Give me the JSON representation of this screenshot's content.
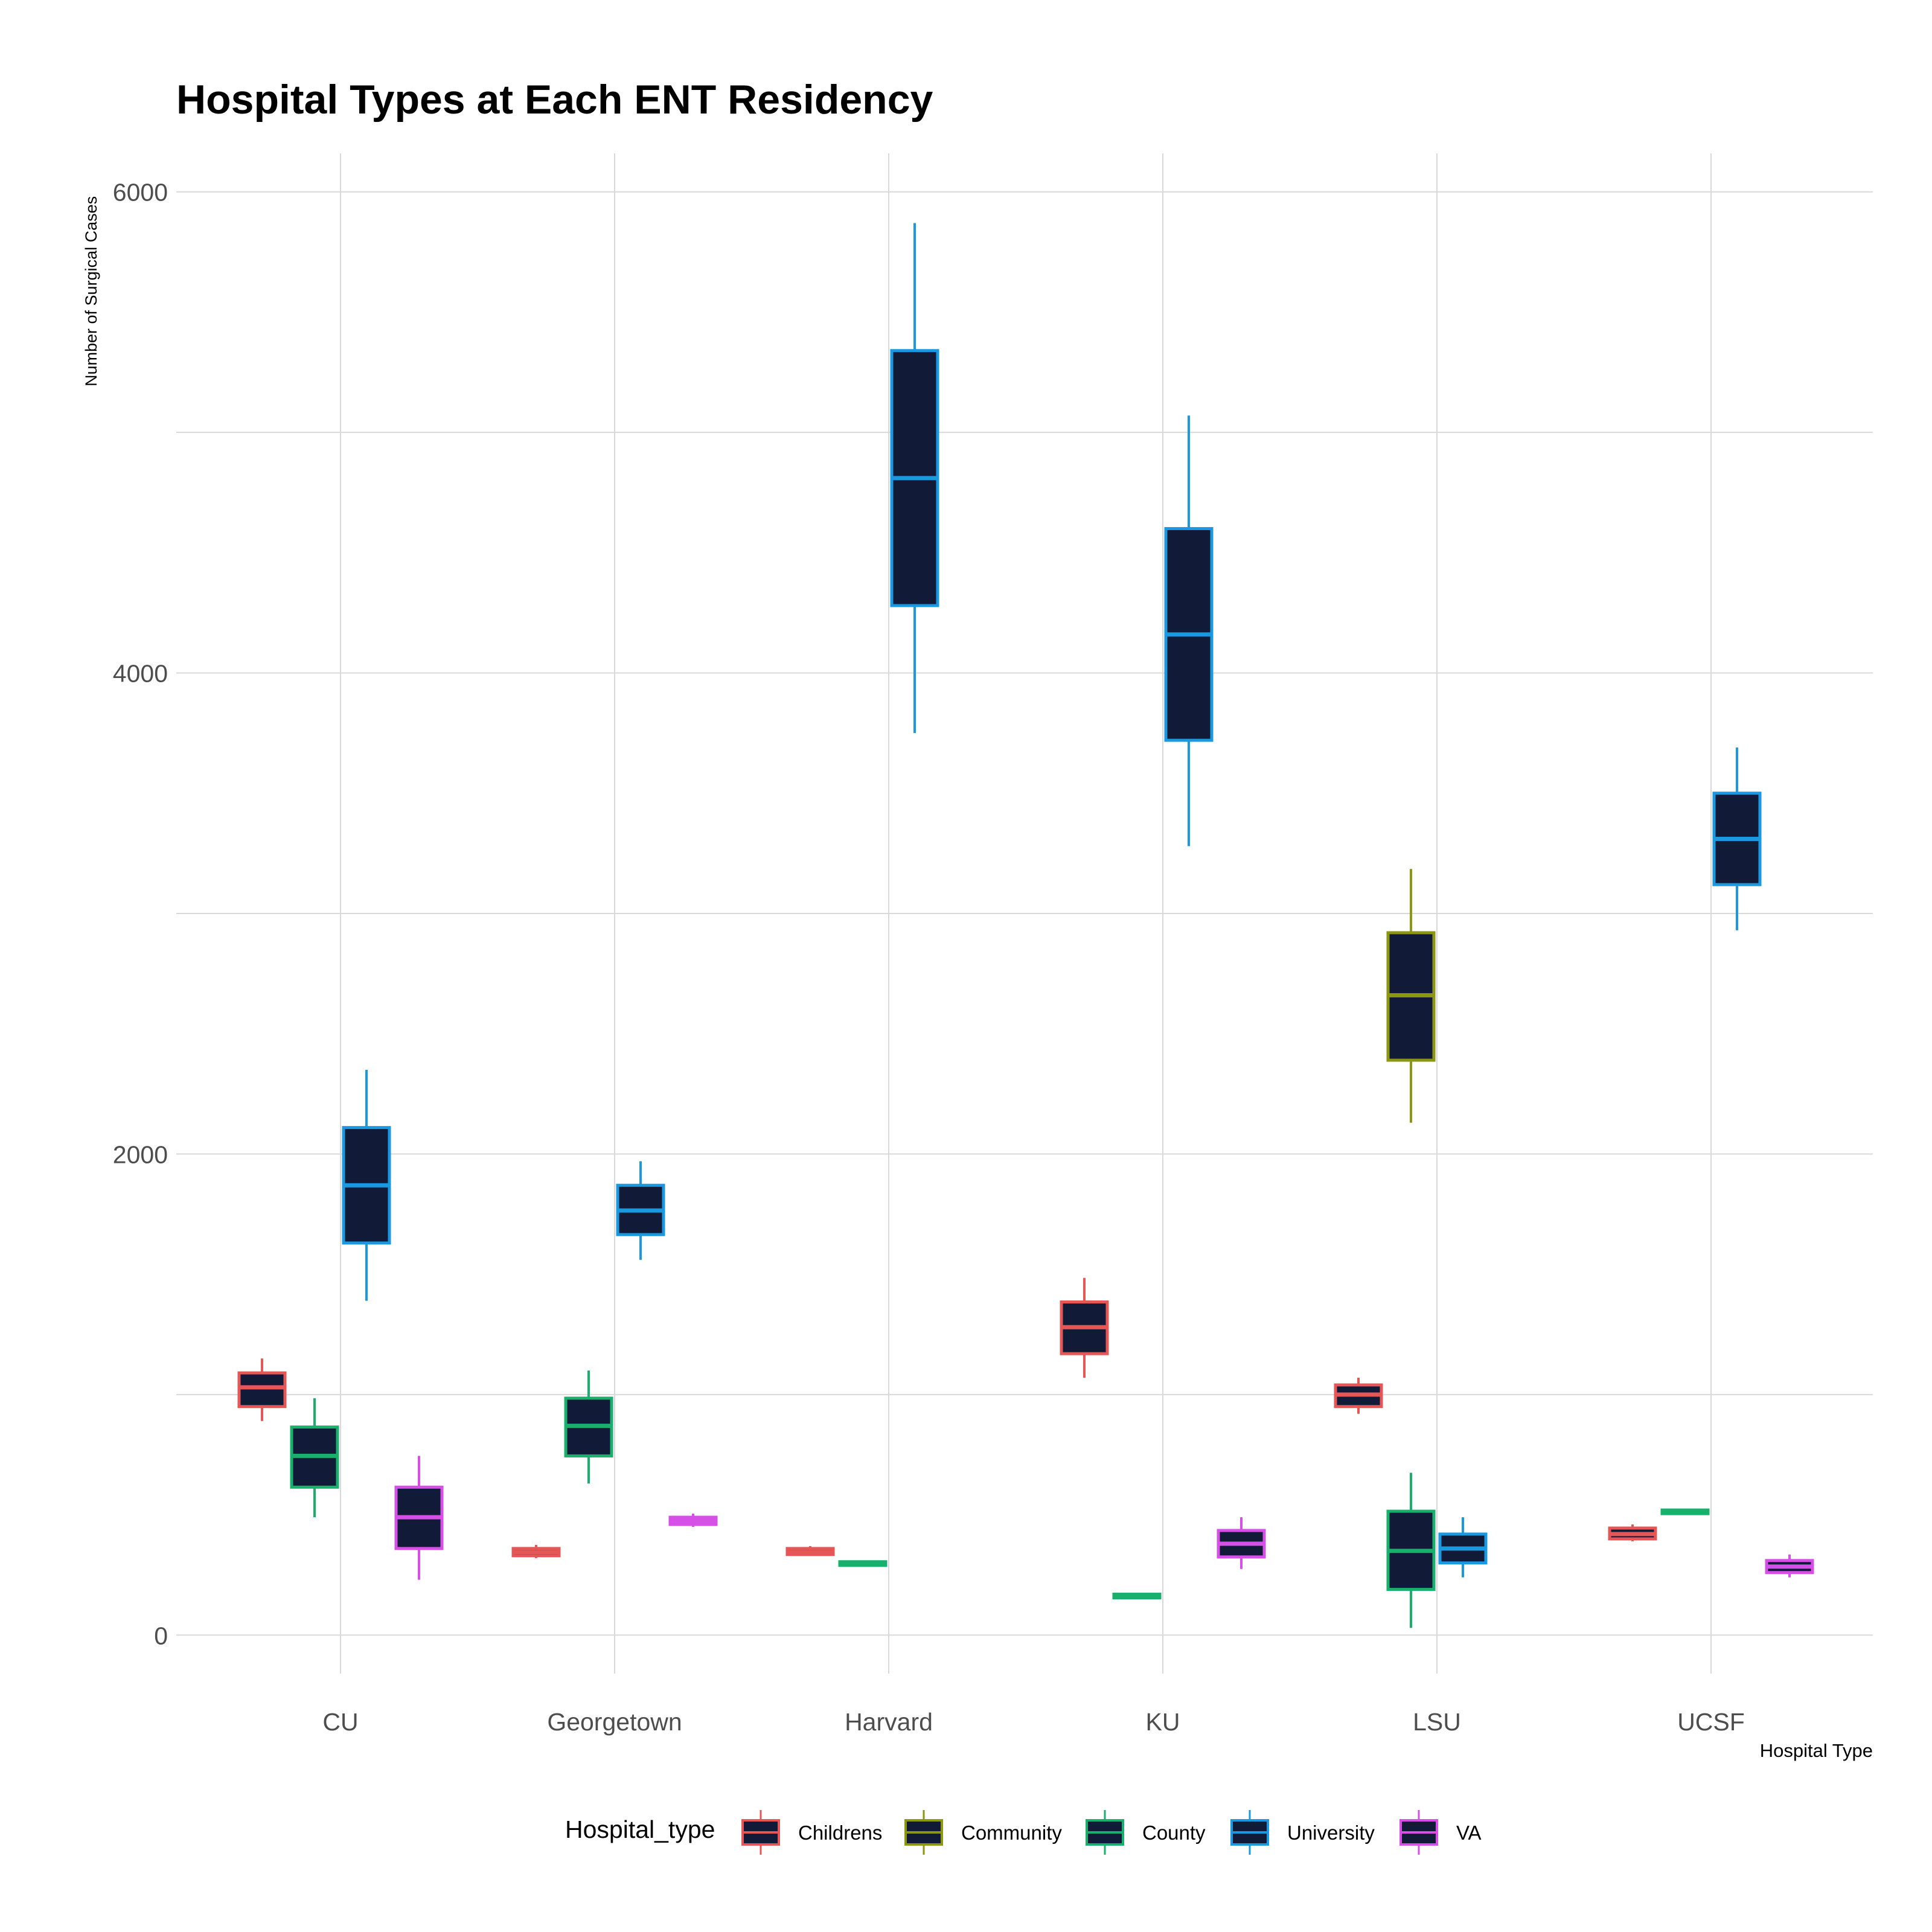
{
  "colors": {
    "background": "#ffffff",
    "grid": "#d9d9d9",
    "box_fill": "#111a36",
    "Childrens": "#e45756",
    "Community": "#8c9611",
    "County": "#18b06c",
    "University": "#1a99e0",
    "VA": "#d64fe6"
  },
  "chart_data": {
    "type": "boxplot",
    "title": "Hospital Types at Each ENT Residency",
    "xlabel": "Hospital Type",
    "ylabel": "Number of Surgical Cases",
    "categories": [
      "CU",
      "Georgetown",
      "Harvard",
      "KU",
      "LSU",
      "UCSF"
    ],
    "ylim": [
      -160,
      6160
    ],
    "y_ticks": [
      0,
      2000,
      4000,
      6000
    ],
    "y_minor_grid": [
      1000,
      3000,
      5000
    ],
    "grid": true,
    "legend": {
      "title": "Hospital_type",
      "position": "bottom",
      "entries": [
        "Childrens",
        "Community",
        "County",
        "University",
        "VA"
      ]
    },
    "series": [
      {
        "name": "Childrens",
        "boxes": [
          {
            "category": "CU",
            "min": 890,
            "q1": 950,
            "median": 1030,
            "q3": 1090,
            "max": 1150
          },
          {
            "category": "Georgetown",
            "min": 320,
            "q1": 330,
            "median": 345,
            "q3": 360,
            "max": 375
          },
          {
            "category": "Harvard",
            "min": 330,
            "q1": 335,
            "median": 345,
            "q3": 360,
            "max": 370
          },
          {
            "category": "KU",
            "min": 1070,
            "q1": 1170,
            "median": 1280,
            "q3": 1385,
            "max": 1485
          },
          {
            "category": "LSU",
            "min": 920,
            "q1": 950,
            "median": 1000,
            "q3": 1040,
            "max": 1070
          },
          {
            "category": "UCSF",
            "min": 390,
            "q1": 400,
            "median": 420,
            "q3": 445,
            "max": 460
          }
        ]
      },
      {
        "name": "Community",
        "boxes": [
          {
            "category": "LSU",
            "min": 2130,
            "q1": 2390,
            "median": 2660,
            "q3": 2920,
            "max": 3185
          }
        ]
      },
      {
        "name": "County",
        "boxes": [
          {
            "category": "CU",
            "min": 490,
            "q1": 615,
            "median": 745,
            "q3": 865,
            "max": 985
          },
          {
            "category": "Georgetown",
            "min": 630,
            "q1": 745,
            "median": 870,
            "q3": 985,
            "max": 1100
          },
          {
            "category": "Harvard",
            "min": 285,
            "q1": 290,
            "median": 295,
            "q3": 305,
            "max": 310
          },
          {
            "category": "KU",
            "min": 150,
            "q1": 155,
            "median": 160,
            "q3": 170,
            "max": 175
          },
          {
            "category": "LSU",
            "min": 30,
            "q1": 190,
            "median": 350,
            "q3": 515,
            "max": 675
          },
          {
            "category": "UCSF",
            "min": 500,
            "q1": 505,
            "median": 510,
            "q3": 520,
            "max": 525
          }
        ]
      },
      {
        "name": "University",
        "boxes": [
          {
            "category": "CU",
            "min": 1390,
            "q1": 1630,
            "median": 1870,
            "q3": 2110,
            "max": 2350
          },
          {
            "category": "Georgetown",
            "min": 1560,
            "q1": 1665,
            "median": 1765,
            "q3": 1870,
            "max": 1970
          },
          {
            "category": "Harvard",
            "min": 3750,
            "q1": 4280,
            "median": 4810,
            "q3": 5340,
            "max": 5870
          },
          {
            "category": "KU",
            "min": 3280,
            "q1": 3720,
            "median": 4160,
            "q3": 4600,
            "max": 5070
          },
          {
            "category": "LSU",
            "min": 240,
            "q1": 300,
            "median": 360,
            "q3": 420,
            "max": 490
          },
          {
            "category": "UCSF",
            "min": 2930,
            "q1": 3120,
            "median": 3310,
            "q3": 3500,
            "max": 3690
          }
        ]
      },
      {
        "name": "VA",
        "boxes": [
          {
            "category": "CU",
            "min": 230,
            "q1": 360,
            "median": 490,
            "q3": 615,
            "max": 745
          },
          {
            "category": "Georgetown",
            "min": 450,
            "q1": 460,
            "median": 475,
            "q3": 490,
            "max": 505
          },
          {
            "category": "KU",
            "min": 275,
            "q1": 325,
            "median": 380,
            "q3": 435,
            "max": 490
          },
          {
            "category": "UCSF",
            "min": 240,
            "q1": 260,
            "median": 285,
            "q3": 310,
            "max": 335
          }
        ]
      }
    ]
  }
}
